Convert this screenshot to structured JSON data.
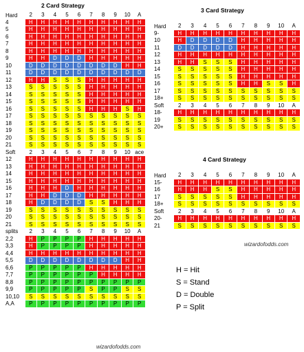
{
  "two_card": {
    "title": "2 Card Strategy",
    "dealer_cards": [
      "2",
      "3",
      "4",
      "5",
      "6",
      "7",
      "8",
      "9",
      "10",
      "A"
    ],
    "dealer_cards_soft": [
      "2",
      "3",
      "4",
      "5",
      "6",
      "7",
      "8",
      "9",
      "10",
      "ace"
    ],
    "sections": [
      {
        "label": "Hard",
        "rows": [
          {
            "label": "4",
            "cells": "HHHHHHHHHH"
          },
          {
            "label": "5",
            "cells": "HHHHHHHHHH"
          },
          {
            "label": "6",
            "cells": "HHHHHHHHHH"
          },
          {
            "label": "7",
            "cells": "HHHHHHHHHH"
          },
          {
            "label": "8",
            "cells": "HHHHHHHHHH"
          },
          {
            "label": "9",
            "cells": "HHDDDHHHHH"
          },
          {
            "label": "10",
            "cells": "DDDDDDDDHH"
          },
          {
            "label": "11",
            "cells": "DDDDDDDDDD"
          },
          {
            "label": "12",
            "cells": "HHSSSHHHHH"
          },
          {
            "label": "13",
            "cells": "SSSSSHHHHH"
          },
          {
            "label": "14",
            "cells": "SSSSSHHHHH"
          },
          {
            "label": "15",
            "cells": "SSSSSHHHHH"
          },
          {
            "label": "16",
            "cells": "SSSSSHHHSH"
          },
          {
            "label": "17",
            "cells": "SSSSSSSSSS"
          },
          {
            "label": "18",
            "cells": "SSSSSSSSSS"
          },
          {
            "label": "19",
            "cells": "SSSSSSSSSS"
          },
          {
            "label": "20",
            "cells": "SSSSSSSSSS"
          },
          {
            "label": "21",
            "cells": "SSSSSSSSSS"
          }
        ]
      },
      {
        "label": "Soft",
        "soft": true,
        "rows": [
          {
            "label": "12",
            "cells": "HHHHHHHHHH"
          },
          {
            "label": "13",
            "cells": "HHHHHHHHHH"
          },
          {
            "label": "14",
            "cells": "HHHHHHHHHH"
          },
          {
            "label": "15",
            "cells": "HHHHHHHHHH"
          },
          {
            "label": "16",
            "cells": "HHHDHHHHHH"
          },
          {
            "label": "17",
            "cells": "HHDDDHHHHH"
          },
          {
            "label": "18",
            "cells": "HDDDDSSHHH"
          },
          {
            "label": "19",
            "cells": "SSSSSSSSSS"
          },
          {
            "label": "20",
            "cells": "SSSSSSSSSS"
          },
          {
            "label": "21",
            "cells": "SSSSSSSSSS"
          }
        ]
      },
      {
        "label": "splits",
        "rows": [
          {
            "label": "2,2",
            "cells": "HPPPPHHHHH"
          },
          {
            "label": "3,3",
            "cells": "HPPPPHHHHH"
          },
          {
            "label": "4,4",
            "cells": "HHHHHHHHHH"
          },
          {
            "label": "5,5",
            "cells": "DDDDDDDDHH"
          },
          {
            "label": "6,6",
            "cells": "PPPPPHHHHH"
          },
          {
            "label": "7,7",
            "cells": "PPPPPPHHHH"
          },
          {
            "label": "8,8",
            "cells": "PPPPPPPPPP"
          },
          {
            "label": "9,9",
            "cells": "PPPPPSPPSS"
          },
          {
            "label": "10,10",
            "cells": "SSSSSSSSSS"
          },
          {
            "label": "A,A",
            "cells": "PPPPPPPPPP"
          }
        ]
      }
    ],
    "watermark": "wizardofodds.com"
  },
  "three_card": {
    "title": "3 Card Strategy",
    "dealer_cards": [
      "2",
      "3",
      "4",
      "5",
      "6",
      "7",
      "8",
      "9",
      "10",
      "A"
    ],
    "sections": [
      {
        "label": "Hard",
        "rows": [
          {
            "label": "9-",
            "cells": "HHHHHHHHHH"
          },
          {
            "label": "10",
            "cells": "HDDDDHHHHH"
          },
          {
            "label": "11",
            "cells": "DDDDDHHHHH"
          },
          {
            "label": "12",
            "cells": "HHHHHHHHHH"
          },
          {
            "label": "13",
            "cells": "HHSSSHHHHH"
          },
          {
            "label": "14",
            "cells": "SSSSSHHHHH"
          },
          {
            "label": "15",
            "cells": "SSSSSHHHHH"
          },
          {
            "label": "16",
            "cells": "SSSSSHHSSH"
          },
          {
            "label": "17",
            "cells": "SSSSSSSSSS"
          },
          {
            "label": "18+",
            "cells": "SSSSSSSSSS"
          }
        ]
      },
      {
        "label": "Soft",
        "rows": [
          {
            "label": "18-",
            "cells": "HHHHHHHHHH"
          },
          {
            "label": "19",
            "cells": "SSSSSSSSSS"
          },
          {
            "label": "20+",
            "cells": "SSSSSSSSSS"
          }
        ]
      }
    ]
  },
  "four_card": {
    "title": "4 Card Strategy",
    "dealer_cards": [
      "2",
      "3",
      "4",
      "5",
      "6",
      "7",
      "8",
      "9",
      "10",
      "A"
    ],
    "sections": [
      {
        "label": "Hard",
        "rows": [
          {
            "label": "15-",
            "cells": "HHHHHHHHHH"
          },
          {
            "label": "16",
            "cells": "HHHSSHHHHH"
          },
          {
            "label": "17",
            "cells": "SSSSSHHHHH"
          },
          {
            "label": "18+",
            "cells": "SSSSSSSSSS"
          }
        ]
      },
      {
        "label": "Soft",
        "rows": [
          {
            "label": "20-",
            "cells": "HHHHHHHHHH"
          },
          {
            "label": "21",
            "cells": "SSSSSSSSSS"
          }
        ]
      }
    ],
    "watermark": "wizardofodds.com"
  },
  "legend": [
    {
      "code": "H",
      "text": "H = Hit"
    },
    {
      "code": "S",
      "text": "S = Stand"
    },
    {
      "code": "D",
      "text": "D = Double"
    },
    {
      "code": "P",
      "text": "P = Split"
    }
  ],
  "colors": {
    "hit": "#ee1111",
    "stand": "#ffff00",
    "double": "#4477cc",
    "split": "#33dd33"
  }
}
